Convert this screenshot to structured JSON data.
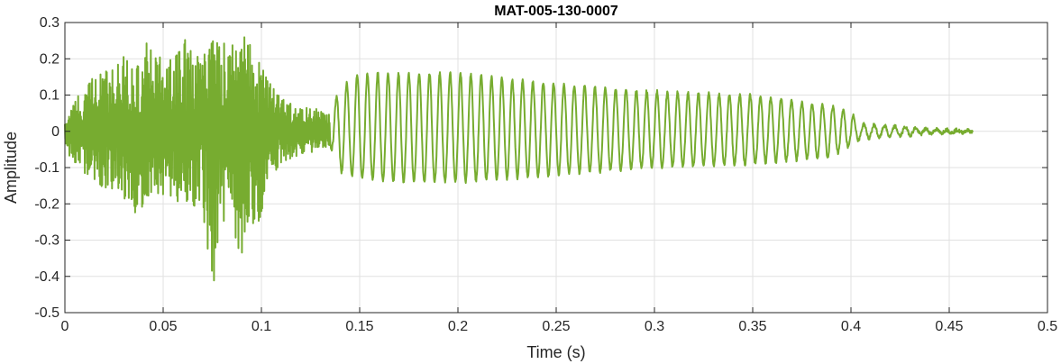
{
  "chart_data": {
    "type": "line",
    "title": "MAT-005-130-0007",
    "xlabel": "Time (s)",
    "ylabel": "Amplitude",
    "xlim": [
      0,
      0.5
    ],
    "ylim": [
      -0.5,
      0.3
    ],
    "x_ticks": [
      0,
      0.05,
      0.1,
      0.15,
      0.2,
      0.25,
      0.3,
      0.35,
      0.4,
      0.45,
      0.5
    ],
    "x_tick_labels": [
      "0",
      "0.05",
      "0.1",
      "0.15",
      "0.2",
      "0.25",
      "0.3",
      "0.35",
      "0.4",
      "0.45",
      "0.5"
    ],
    "y_ticks": [
      -0.5,
      -0.4,
      -0.3,
      -0.2,
      -0.1,
      0,
      0.1,
      0.2,
      0.3
    ],
    "y_tick_labels": [
      "-0.5",
      "-0.4",
      "-0.3",
      "-0.2",
      "-0.1",
      "0",
      "0.1",
      "0.2",
      "0.3"
    ],
    "grid": true,
    "line_color": "#77AC30",
    "series": [
      {
        "x_start": 0,
        "x_end": 0.462,
        "envelope": [
          [
            0.0,
            -0.04,
            0.03
          ],
          [
            0.005,
            -0.1,
            0.08
          ],
          [
            0.01,
            -0.12,
            0.13
          ],
          [
            0.02,
            -0.16,
            0.17
          ],
          [
            0.03,
            -0.2,
            0.21
          ],
          [
            0.035,
            -0.24,
            0.17
          ],
          [
            0.04,
            -0.21,
            0.25
          ],
          [
            0.05,
            -0.18,
            0.22
          ],
          [
            0.055,
            -0.19,
            0.21
          ],
          [
            0.06,
            -0.23,
            0.26
          ],
          [
            0.07,
            -0.21,
            0.2
          ],
          [
            0.075,
            -0.45,
            0.29
          ],
          [
            0.08,
            -0.25,
            0.24
          ],
          [
            0.09,
            -0.34,
            0.28
          ],
          [
            0.1,
            -0.24,
            0.21
          ],
          [
            0.105,
            -0.14,
            0.14
          ],
          [
            0.11,
            -0.09,
            0.09
          ],
          [
            0.12,
            -0.07,
            0.07
          ],
          [
            0.13,
            -0.05,
            0.06
          ],
          [
            0.135,
            -0.04,
            0.05
          ],
          [
            0.14,
            -0.11,
            0.12
          ],
          [
            0.15,
            -0.13,
            0.16
          ],
          [
            0.17,
            -0.14,
            0.16
          ],
          [
            0.2,
            -0.14,
            0.16
          ],
          [
            0.25,
            -0.12,
            0.13
          ],
          [
            0.3,
            -0.1,
            0.11
          ],
          [
            0.35,
            -0.09,
            0.1
          ],
          [
            0.39,
            -0.07,
            0.07
          ],
          [
            0.4,
            -0.04,
            0.05
          ],
          [
            0.405,
            -0.02,
            0.02
          ],
          [
            0.42,
            -0.015,
            0.015
          ],
          [
            0.44,
            -0.006,
            0.006
          ],
          [
            0.462,
            -0.002,
            0.002
          ]
        ]
      }
    ]
  }
}
